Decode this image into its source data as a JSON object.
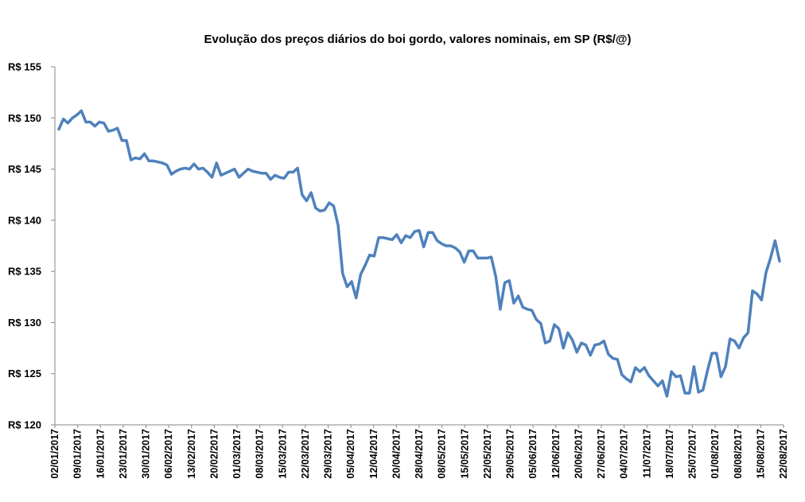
{
  "chart_data": {
    "type": "line",
    "title": "Evolução dos preços diários do boi gordo, valores nominais, em SP (R$/@)",
    "xlabel": "",
    "ylabel": "",
    "ylim": [
      120,
      155
    ],
    "y_ticks": [
      {
        "value": 155,
        "label": "R$ 155"
      },
      {
        "value": 150,
        "label": "R$ 150"
      },
      {
        "value": 145,
        "label": "R$ 145"
      },
      {
        "value": 140,
        "label": "R$ 140"
      },
      {
        "value": 135,
        "label": "R$ 135"
      },
      {
        "value": 130,
        "label": "R$ 130"
      },
      {
        "value": 125,
        "label": "R$ 125"
      },
      {
        "value": 120,
        "label": "R$ 120"
      }
    ],
    "x_tick_labels": [
      "02/01/2017",
      "09/01/2017",
      "16/01/2017",
      "23/01/2017",
      "30/01/2017",
      "06/02/2017",
      "13/02/2017",
      "20/02/2017",
      "01/03/2017",
      "08/03/2017",
      "15/03/2017",
      "22/03/2017",
      "29/03/2017",
      "05/04/2017",
      "12/04/2017",
      "20/04/2017",
      "28/04/2017",
      "08/05/2017",
      "15/05/2017",
      "22/05/2017",
      "29/05/2017",
      "05/06/2017",
      "12/06/2017",
      "20/06/2017",
      "27/06/2017",
      "04/07/2017",
      "11/07/2017",
      "18/07/2017",
      "25/07/2017",
      "01/08/2017",
      "08/08/2017",
      "15/08/2017",
      "22/08/2017"
    ],
    "grid": false,
    "legend": "none",
    "line_color": "#4F81BD",
    "series": [
      {
        "values": [
          148.9,
          149.9,
          149.5,
          150.0,
          150.3,
          150.7,
          149.6,
          149.6,
          149.2,
          149.6,
          149.5,
          148.7,
          148.8,
          149.0,
          147.8,
          147.8,
          145.9,
          146.1,
          146.0,
          146.5,
          145.8,
          145.8,
          145.7,
          145.6,
          145.4,
          144.5,
          144.8,
          145.0,
          145.1,
          145.0,
          145.5,
          145.0,
          145.1,
          144.7,
          144.2,
          145.6,
          144.4,
          144.6,
          144.8,
          145.0,
          144.2,
          144.6,
          145.0,
          144.8,
          144.7,
          144.6,
          144.6,
          144.0,
          144.4,
          144.2,
          144.1,
          144.7,
          144.7,
          145.1,
          142.5,
          141.9,
          142.7,
          141.2,
          140.9,
          141.0,
          141.7,
          141.4,
          139.5,
          134.8,
          133.5,
          134.0,
          132.4,
          134.7,
          135.6,
          136.6,
          136.5,
          138.3,
          138.3,
          138.2,
          138.1,
          138.6,
          137.8,
          138.5,
          138.3,
          138.9,
          139.0,
          137.4,
          138.8,
          138.8,
          138.0,
          137.7,
          137.5,
          137.5,
          137.3,
          136.9,
          135.9,
          137.0,
          137.0,
          136.3,
          136.3,
          136.3,
          136.4,
          134.5,
          131.3,
          133.9,
          134.1,
          131.9,
          132.6,
          131.5,
          131.3,
          131.2,
          130.3,
          129.9,
          128.0,
          128.2,
          129.8,
          129.4,
          127.5,
          129.0,
          128.3,
          127.1,
          128.0,
          127.8,
          126.8,
          127.8,
          127.9,
          128.2,
          126.9,
          126.5,
          126.4,
          124.9,
          124.5,
          124.2,
          125.6,
          125.2,
          125.6,
          124.8,
          124.3,
          123.8,
          124.3,
          122.8,
          125.2,
          124.7,
          124.8,
          123.1,
          123.1,
          125.7,
          123.2,
          123.4,
          125.3,
          127.0,
          127.0,
          124.7,
          125.7,
          128.4,
          128.2,
          127.5,
          128.5,
          129.0,
          133.1,
          132.8,
          132.2,
          134.9,
          136.3,
          138.0,
          136.0
        ]
      }
    ]
  }
}
